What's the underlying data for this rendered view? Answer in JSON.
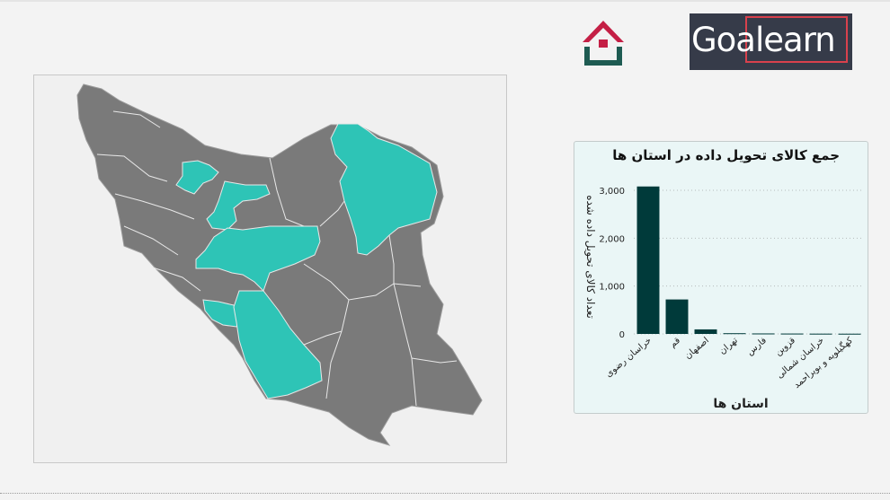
{
  "header": {
    "home_icon": "home-icon",
    "logo_text": "Goalearn",
    "logo_colors": {
      "background": "#363b49",
      "accent": "#d9414d"
    }
  },
  "map": {
    "highlight_color": "#2ec4b6",
    "base_color": "#7a7a7a",
    "highlighted_regions": [
      "خراسان رضوی",
      "قم",
      "اصفهان",
      "تهران",
      "فارس",
      "قزوین",
      "خراسان شمالی",
      "کهگیلویه و بویراحمد"
    ]
  },
  "chart_data": {
    "type": "bar",
    "title": "جمع کالای تحویل داده در استان ها",
    "xlabel": "استان ها",
    "ylabel": "تعداد کالای تحویل داده شده",
    "categories": [
      "خراسان رضوی",
      "قم",
      "اصفهان",
      "تهران",
      "فارس",
      "قزوین",
      "خراسان شمالی",
      "کهگیلویه و بویراحمد"
    ],
    "values": [
      3080,
      720,
      95,
      15,
      10,
      8,
      6,
      5
    ],
    "ylim": [
      0,
      3300
    ],
    "yticks": [
      0,
      1000,
      2000,
      3000
    ],
    "ytick_labels": [
      "0",
      "1,000",
      "2,000",
      "3,000"
    ],
    "grid": true,
    "bar_color": "#003a3a"
  }
}
